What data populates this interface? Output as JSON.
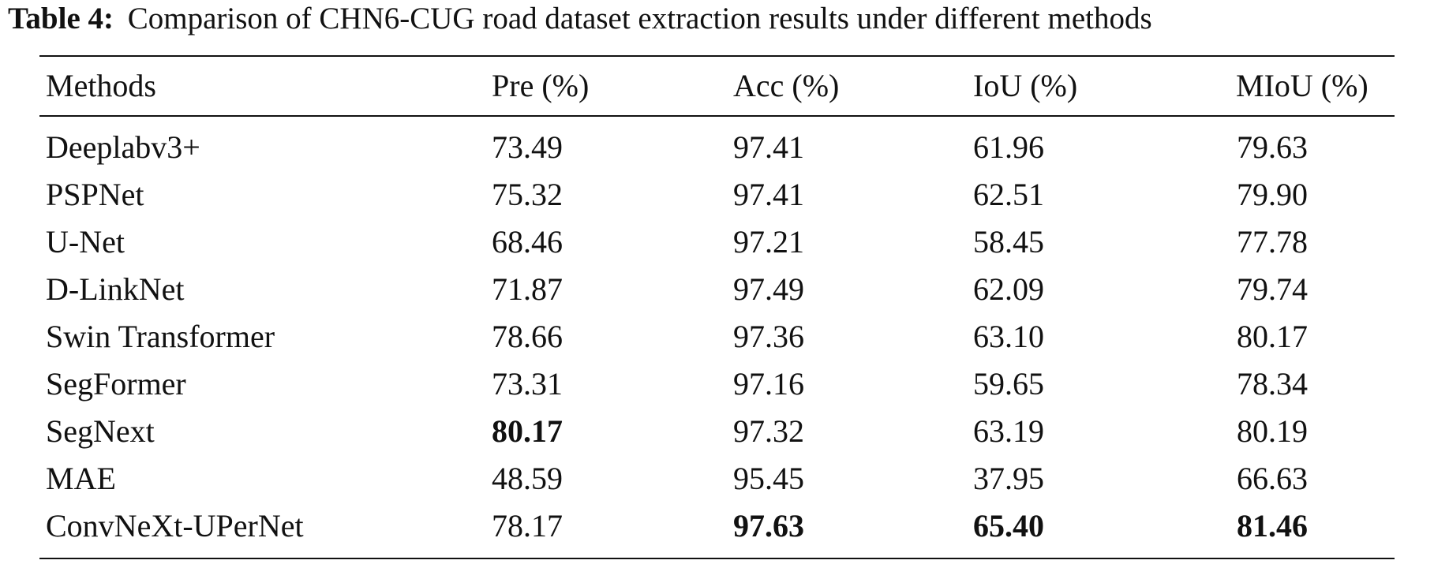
{
  "caption": {
    "label": "Table 4:",
    "text": "Comparison of CHN6-CUG road dataset extraction results under different methods"
  },
  "table": {
    "headers": [
      "Methods",
      "Pre (%)",
      "Acc (%)",
      "IoU (%)",
      "MIoU (%)"
    ],
    "rows": [
      {
        "method": "Deeplabv3+",
        "pre": "73.49",
        "acc": "97.41",
        "iou": "61.96",
        "miou": "79.63"
      },
      {
        "method": "PSPNet",
        "pre": "75.32",
        "acc": "97.41",
        "iou": "62.51",
        "miou": "79.90"
      },
      {
        "method": "U-Net",
        "pre": "68.46",
        "acc": "97.21",
        "iou": "58.45",
        "miou": "77.78"
      },
      {
        "method": "D-LinkNet",
        "pre": "71.87",
        "acc": "97.49",
        "iou": "62.09",
        "miou": "79.74"
      },
      {
        "method": "Swin Transformer",
        "pre": "78.66",
        "acc": "97.36",
        "iou": "63.10",
        "miou": "80.17"
      },
      {
        "method": "SegFormer",
        "pre": "73.31",
        "acc": "97.16",
        "iou": "59.65",
        "miou": "78.34"
      },
      {
        "method": "SegNext",
        "pre": "80.17",
        "acc": "97.32",
        "iou": "63.19",
        "miou": "80.19"
      },
      {
        "method": "MAE",
        "pre": "48.59",
        "acc": "95.45",
        "iou": "37.95",
        "miou": "66.63"
      },
      {
        "method": "ConvNeXt-UPerNet",
        "pre": "78.17",
        "acc": "97.63",
        "iou": "65.40",
        "miou": "81.46"
      }
    ]
  }
}
